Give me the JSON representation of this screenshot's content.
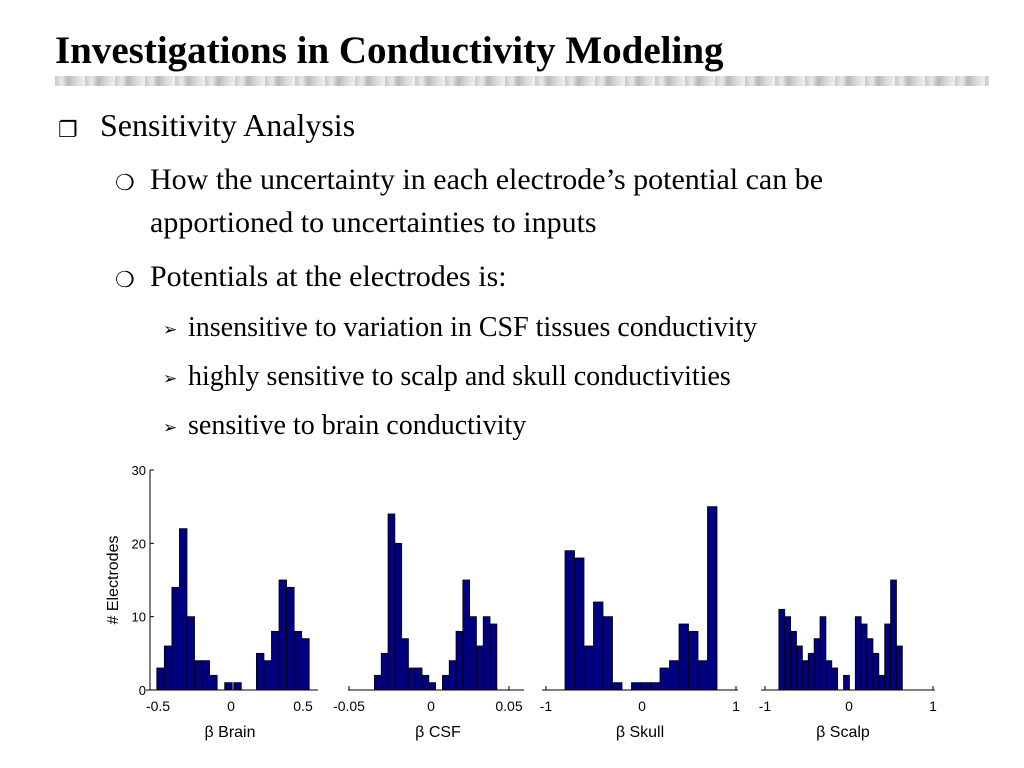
{
  "slide": {
    "title": "Investigations in Conductivity Modeling",
    "bullet_main": "Sensitivity Analysis",
    "sub1_line1": "How the uncertainty in each electrode’s potential can be",
    "sub1_line2": "apportioned to uncertainties to inputs",
    "sub2": "Potentials at the electrodes is:",
    "items": [
      "insensitive to variation in CSF tissues conductivity",
      "highly sensitive to scalp and skull conductivities",
      "sensitive to brain conductivity"
    ]
  },
  "icons": {
    "main_bullet": "square-bullet-icon",
    "sub_bullet": "circle-bullet-icon",
    "item_bullet": "arrow-bullet-icon"
  },
  "chart_data": [
    {
      "type": "bar",
      "xlabel": "β Brain",
      "ylabel": "# Electrodes",
      "xlim": [
        -0.55,
        0.55
      ],
      "ylim": [
        0,
        30
      ],
      "xticks": [
        "-0.5",
        "0",
        "0.5"
      ],
      "yticks": [
        "0",
        "10",
        "20",
        "30"
      ],
      "bar_color": "#000080",
      "x": [
        -0.48,
        -0.43,
        -0.38,
        -0.33,
        -0.28,
        -0.23,
        -0.18,
        -0.13,
        -0.08,
        -0.03,
        0.03,
        0.08,
        0.13,
        0.18,
        0.23,
        0.28,
        0.33,
        0.38,
        0.43,
        0.48
      ],
      "values": [
        3,
        6,
        14,
        22,
        10,
        4,
        4,
        2,
        0,
        1,
        1,
        0,
        0,
        5,
        4,
        8,
        15,
        14,
        8,
        7
      ]
    },
    {
      "type": "bar",
      "xlabel": "β CSF",
      "xlim": [
        -0.06,
        0.065
      ],
      "xticks": [
        "-0.05",
        "0",
        "0.05"
      ],
      "bar_color": "#000080",
      "x": [
        -0.041,
        -0.036,
        -0.031,
        -0.026,
        -0.021,
        -0.016,
        -0.011,
        -0.006,
        -0.001,
        0.004,
        0.009,
        0.014,
        0.019,
        0.024,
        0.029,
        0.034,
        0.039,
        0.044
      ],
      "values": [
        2,
        5,
        24,
        20,
        7,
        3,
        3,
        2,
        1,
        0,
        2,
        4,
        8,
        15,
        10,
        6,
        10,
        9
      ]
    },
    {
      "type": "bar",
      "xlabel": "β Skull",
      "xlim": [
        -1,
        1
      ],
      "xticks": [
        "-1",
        "0",
        "1"
      ],
      "bar_color": "#000080",
      "x": [
        -0.75,
        -0.65,
        -0.55,
        -0.45,
        -0.35,
        -0.25,
        -0.15,
        -0.05,
        0.05,
        0.15,
        0.25,
        0.35,
        0.45,
        0.55,
        0.65,
        0.75
      ],
      "values": [
        19,
        18,
        6,
        12,
        10,
        1,
        0,
        1,
        1,
        1,
        3,
        4,
        9,
        8,
        4,
        25
      ]
    },
    {
      "type": "bar",
      "xlabel": "β Scalp",
      "xlim": [
        -1,
        1
      ],
      "xticks": [
        "-1",
        "0",
        "1"
      ],
      "bar_color": "#000080",
      "x": [
        -0.8,
        -0.73,
        -0.66,
        -0.59,
        -0.52,
        -0.45,
        -0.38,
        -0.31,
        -0.24,
        -0.17,
        -0.1,
        -0.03,
        0.04,
        0.11,
        0.18,
        0.25,
        0.32,
        0.39,
        0.46,
        0.53,
        0.6,
        0.67,
        0.74,
        0.81
      ],
      "values": [
        11,
        10,
        8,
        6,
        4,
        5,
        7,
        10,
        4,
        3,
        0,
        2,
        0,
        10,
        9,
        7,
        5,
        2,
        9,
        15,
        6,
        0,
        0,
        0
      ]
    }
  ]
}
